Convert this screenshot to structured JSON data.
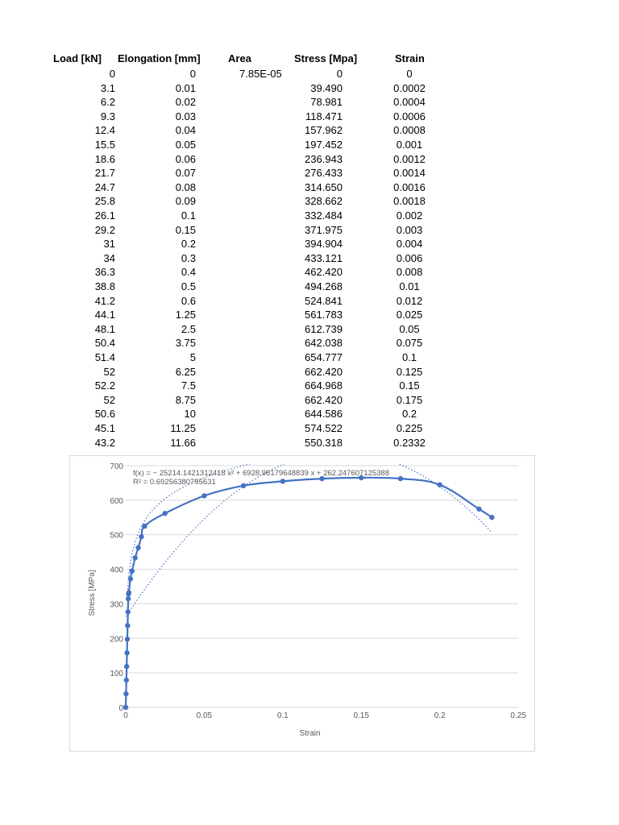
{
  "table": {
    "headers": [
      "Load [kN]",
      "Elongation [mm]",
      "Area",
      "Stress [Mpa]",
      "Strain"
    ],
    "area_value": "7.85E-05",
    "rows": [
      [
        "0",
        "0",
        "0",
        "0"
      ],
      [
        "3.1",
        "0.01",
        "39.490",
        "0.0002"
      ],
      [
        "6.2",
        "0.02",
        "78.981",
        "0.0004"
      ],
      [
        "9.3",
        "0.03",
        "118.471",
        "0.0006"
      ],
      [
        "12.4",
        "0.04",
        "157.962",
        "0.0008"
      ],
      [
        "15.5",
        "0.05",
        "197.452",
        "0.001"
      ],
      [
        "18.6",
        "0.06",
        "236.943",
        "0.0012"
      ],
      [
        "21.7",
        "0.07",
        "276.433",
        "0.0014"
      ],
      [
        "24.7",
        "0.08",
        "314.650",
        "0.0016"
      ],
      [
        "25.8",
        "0.09",
        "328.662",
        "0.0018"
      ],
      [
        "26.1",
        "0.1",
        "332.484",
        "0.002"
      ],
      [
        "29.2",
        "0.15",
        "371.975",
        "0.003"
      ],
      [
        "31",
        "0.2",
        "394.904",
        "0.004"
      ],
      [
        "34",
        "0.3",
        "433.121",
        "0.006"
      ],
      [
        "36.3",
        "0.4",
        "462.420",
        "0.008"
      ],
      [
        "38.8",
        "0.5",
        "494.268",
        "0.01"
      ],
      [
        "41.2",
        "0.6",
        "524.841",
        "0.012"
      ],
      [
        "44.1",
        "1.25",
        "561.783",
        "0.025"
      ],
      [
        "48.1",
        "2.5",
        "612.739",
        "0.05"
      ],
      [
        "50.4",
        "3.75",
        "642.038",
        "0.075"
      ],
      [
        "51.4",
        "5",
        "654.777",
        "0.1"
      ],
      [
        "52",
        "6.25",
        "662.420",
        "0.125"
      ],
      [
        "52.2",
        "7.5",
        "664.968",
        "0.15"
      ],
      [
        "52",
        "8.75",
        "662.420",
        "0.175"
      ],
      [
        "50.6",
        "10",
        "644.586",
        "0.2"
      ],
      [
        "45.1",
        "11.25",
        "574.522",
        "0.225"
      ],
      [
        "43.2",
        "11.66",
        "550.318",
        "0.2332"
      ]
    ]
  },
  "chart_data": {
    "type": "scatter",
    "title": "",
    "xlabel": "Strain",
    "ylabel": "Stress [MPa]",
    "xlim": [
      0,
      0.25
    ],
    "ylim": [
      0,
      700
    ],
    "xticks": [
      0,
      0.05,
      0.1,
      0.15,
      0.2,
      0.25
    ],
    "xtick_labels": [
      "0",
      "0.05",
      "0.1",
      "0.15",
      "0.2",
      "0.25"
    ],
    "yticks": [
      0,
      100,
      200,
      300,
      400,
      500,
      600,
      700
    ],
    "ytick_labels": [
      "0",
      "100",
      "200",
      "300",
      "400",
      "500",
      "600",
      "700"
    ],
    "grid": true,
    "series_color": "#4472c4",
    "series": [
      {
        "x": [
          0,
          0.0002,
          0.0004,
          0.0006,
          0.0008,
          0.001,
          0.0012,
          0.0014,
          0.0016,
          0.0018,
          0.002,
          0.003,
          0.004,
          0.006,
          0.008,
          0.01,
          0.012,
          0.025,
          0.05,
          0.075,
          0.1,
          0.125,
          0.15,
          0.175,
          0.2,
          0.225,
          0.2332
        ],
        "y": [
          0,
          39.49,
          78.981,
          118.471,
          157.962,
          197.452,
          236.943,
          276.433,
          314.65,
          328.662,
          332.484,
          371.975,
          394.904,
          433.121,
          462.42,
          494.268,
          524.841,
          561.783,
          612.739,
          642.038,
          654.777,
          662.42,
          664.968,
          662.42,
          644.586,
          574.522,
          550.318
        ]
      }
    ],
    "trendline_equation": "f(x) = − 25214.1421312418 x² + 6928.98179648839 x + 262.247607125388",
    "trendline_r2": "R² = 0.69256380755631",
    "trendlines": [
      {
        "kind": "polynomial",
        "coefficients": [
          262.247607125388,
          6928.98179648839,
          -25214.1421312418
        ]
      },
      {
        "kind": "logarithmic",
        "coefficients": [
          927,
          87.5
        ]
      }
    ]
  }
}
